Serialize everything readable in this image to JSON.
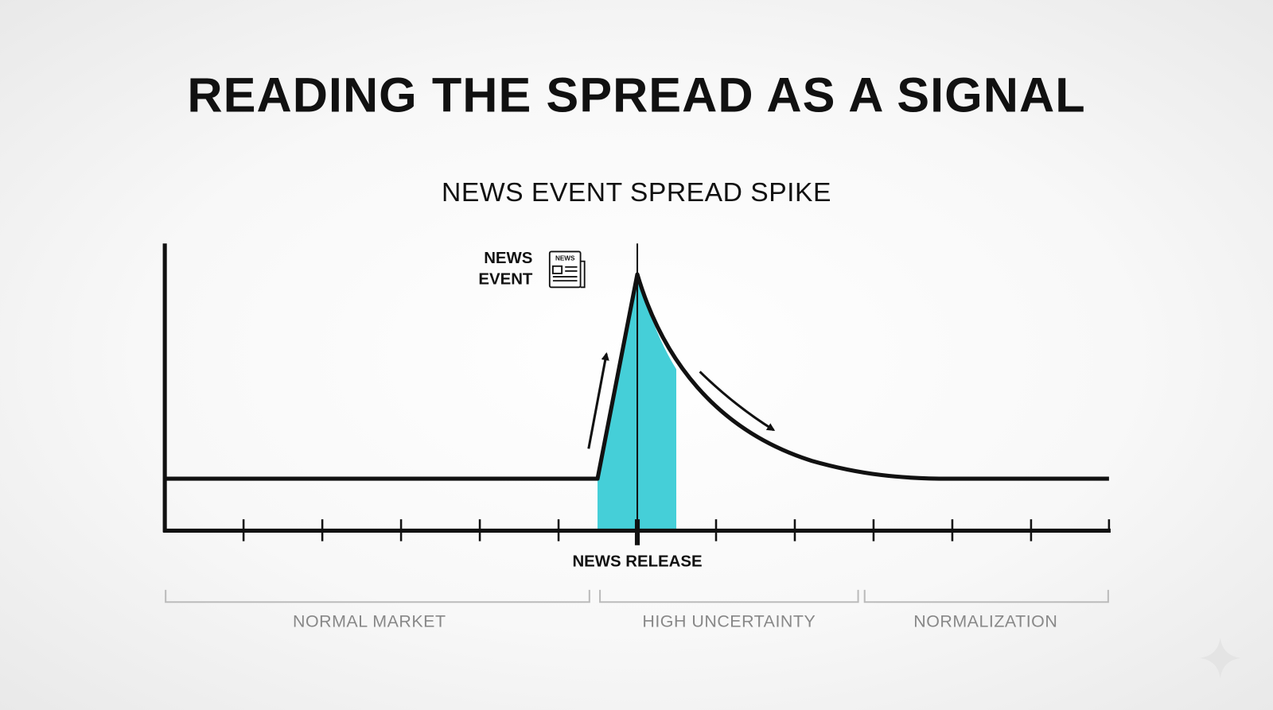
{
  "header": {
    "title": "READING THE SPREAD AS A SIGNAL",
    "subtitle": "NEWS EVENT SPREAD SPIKE"
  },
  "news_event": {
    "label_lines": [
      "NEWS",
      "EVENT"
    ],
    "icon_text": "NEWS"
  },
  "axis": {
    "marker_label": "NEWS RELEASE"
  },
  "phases": [
    {
      "label": "NORMAL MARKET"
    },
    {
      "label": "HIGH UNCERTAINTY"
    },
    {
      "label": "NORMALIZATION"
    }
  ]
}
